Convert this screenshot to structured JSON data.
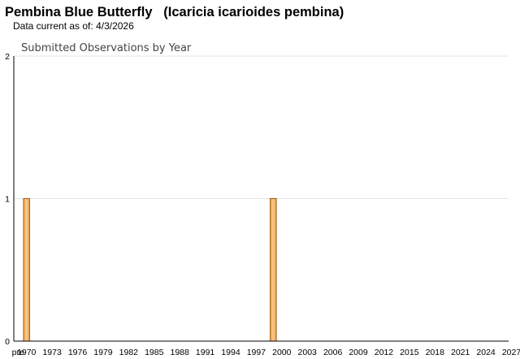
{
  "page": {
    "title": "Pembina Blue Butterfly   (Icaricia icarioides pembina)",
    "data_current_label": "Data current as of:",
    "data_current_date": "4/3/2026"
  },
  "colors": {
    "bar_fill": "#f0a54a",
    "bar_highlight": "#f6c98a",
    "bar_stroke": "#9a5a14",
    "gridline": "#e4e4e4",
    "axis": "#000000"
  },
  "chart_data": {
    "type": "bar",
    "title": "Submitted Observations by Year",
    "xlabel": "",
    "ylabel": "",
    "ylim": [
      0,
      2
    ],
    "y_ticks": [
      0,
      1,
      2
    ],
    "grid": true,
    "categories": [
      "pre 1970",
      "1970",
      "1971",
      "1972",
      "1973",
      "1974",
      "1975",
      "1976",
      "1977",
      "1978",
      "1979",
      "1980",
      "1981",
      "1982",
      "1983",
      "1984",
      "1985",
      "1986",
      "1987",
      "1988",
      "1989",
      "1990",
      "1991",
      "1992",
      "1993",
      "1994",
      "1995",
      "1996",
      "1997",
      "1998",
      "1999",
      "2000",
      "2001",
      "2002",
      "2003",
      "2004",
      "2005",
      "2006",
      "2007",
      "2008",
      "2009",
      "2010",
      "2011",
      "2012",
      "2013",
      "2014",
      "2015",
      "2016",
      "2017",
      "2018",
      "2019",
      "2020",
      "2021",
      "2022",
      "2023",
      "2024",
      "2025",
      "2026",
      "2027"
    ],
    "x_tick_labels": [
      "pre",
      "1970",
      "1973",
      "1976",
      "1979",
      "1982",
      "1985",
      "1988",
      "1991",
      "1994",
      "1997",
      "2000",
      "2003",
      "2006",
      "2009",
      "2012",
      "2015",
      "2018",
      "2021",
      "2024",
      "2027"
    ],
    "values": [
      0,
      1,
      0,
      0,
      0,
      0,
      0,
      0,
      0,
      0,
      0,
      0,
      0,
      0,
      0,
      0,
      0,
      0,
      0,
      0,
      0,
      0,
      0,
      0,
      0,
      0,
      0,
      0,
      0,
      0,
      1,
      0,
      0,
      0,
      0,
      0,
      0,
      0,
      0,
      0,
      0,
      0,
      0,
      0,
      0,
      0,
      0,
      0,
      0,
      0,
      0,
      0,
      0,
      0,
      0,
      0,
      0,
      0,
      0
    ]
  }
}
